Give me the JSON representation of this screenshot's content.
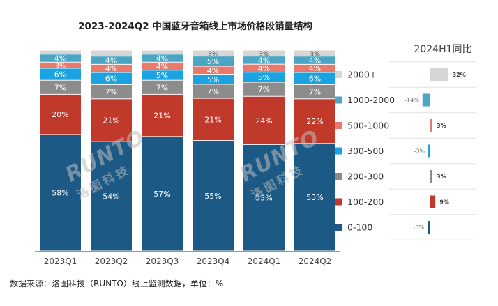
{
  "title": "2023-2024Q2 中国蓝牙音箱线上市场价格段销量结构",
  "yoy_title": "2024H1同比",
  "source": "数据来源：洛图科技（RUNTO）线上监测数据，单位：%",
  "watermark": {
    "brand": "RUNTO",
    "cn": "洛图科技"
  },
  "colors": {
    "0-100": "#1c5a85",
    "100-200": "#c0392b",
    "200-300": "#8c8c8c",
    "300-500": "#1aa3e0",
    "500-1000": "#e8796b",
    "1000-2000": "#4aa6c4",
    "2000+": "#d6d6d6"
  },
  "chart_data": [
    {
      "type": "bar",
      "stacked": true,
      "categories": [
        "2023Q1",
        "2023Q2",
        "2023Q3",
        "2023Q4",
        "2024Q1",
        "2024Q2"
      ],
      "series": [
        {
          "name": "0-100",
          "values": [
            58,
            54,
            57,
            55,
            53,
            53
          ]
        },
        {
          "name": "100-200",
          "values": [
            20,
            21,
            21,
            21,
            24,
            22
          ]
        },
        {
          "name": "200-300",
          "values": [
            7,
            7,
            7,
            7,
            7,
            7
          ]
        },
        {
          "name": "300-500",
          "values": [
            6,
            6,
            5,
            5,
            5,
            6
          ]
        },
        {
          "name": "500-1000",
          "values": [
            3,
            4,
            4,
            4,
            4,
            4
          ]
        },
        {
          "name": "1000-2000",
          "values": [
            4,
            4,
            4,
            5,
            4,
            4
          ]
        },
        {
          "name": "2000+",
          "values": [
            2,
            3,
            2,
            3,
            3,
            3
          ]
        }
      ],
      "labels": {
        "0-100": [
          "58%",
          "54%",
          "57%",
          "55%",
          "53%",
          "53%"
        ],
        "100-200": [
          "20%",
          "21%",
          "21%",
          "21%",
          "24%",
          "22%"
        ],
        "200-300": [
          "7%",
          "7%",
          "7%",
          "7%",
          "7%",
          "7%"
        ],
        "300-500": [
          "6%",
          "6%",
          "5%",
          "5%",
          "5%",
          "6%"
        ],
        "500-1000": [
          "3%",
          "4%",
          "4%",
          "4%",
          "4%",
          "4%"
        ],
        "1000-2000": [
          "4%",
          "4%",
          "4%",
          "5%",
          "4%",
          "4%"
        ],
        "2000+": [
          "",
          "",
          "",
          "3%",
          "3%",
          "3%"
        ]
      },
      "ylim": [
        0,
        100
      ]
    },
    {
      "type": "bar",
      "orientation": "horizontal",
      "categories": [
        "2000+",
        "1000-2000",
        "500-1000",
        "300-500",
        "200-300",
        "100-200",
        "0-100"
      ],
      "values": [
        32,
        -14,
        3,
        -3,
        3,
        9,
        -5
      ],
      "labels": [
        "32%",
        "-14%",
        "3%",
        "-3%",
        "3%",
        "9%",
        "-5%"
      ],
      "legend_placement": "left"
    }
  ]
}
